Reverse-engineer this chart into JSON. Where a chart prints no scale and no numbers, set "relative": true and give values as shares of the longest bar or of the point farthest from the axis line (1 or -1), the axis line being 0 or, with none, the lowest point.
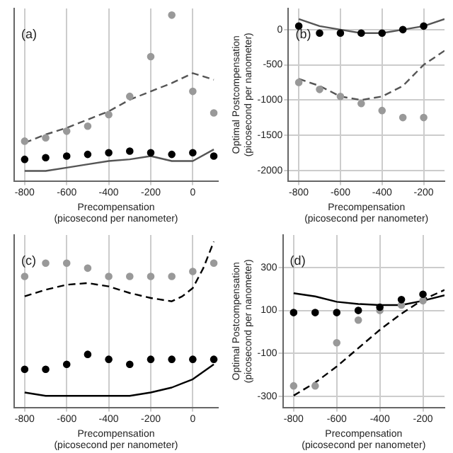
{
  "chart_data": [
    {
      "type": "line",
      "relative": true,
      "x": [
        -800,
        -700,
        -600,
        -500,
        -400,
        -300,
        -200,
        -100,
        0,
        100
      ],
      "xlabel": "Precompensation\n(picosecond per nanometer)",
      "xlim": [
        -850,
        120
      ],
      "xticks": [
        -800,
        -600,
        -400,
        -200,
        0
      ],
      "tick_labels": "x",
      "grid": "x",
      "annotations": [
        "(a)"
      ],
      "series": [
        {
          "type": "scatter",
          "marker": "circle",
          "color": "#999999",
          "values": [
            0.24,
            0.26,
            0.3,
            0.33,
            0.4,
            0.51,
            0.75,
            1.0,
            0.54,
            0.41
          ]
        },
        {
          "type": "scatter",
          "marker": "circle",
          "color": "#000000",
          "values": [
            0.13,
            0.14,
            0.15,
            0.16,
            0.17,
            0.18,
            0.17,
            0.16,
            0.17,
            0.15
          ]
        },
        {
          "line_style": "dashed",
          "color": "#555555",
          "values": [
            0.23,
            0.28,
            0.32,
            0.37,
            0.42,
            0.49,
            0.54,
            0.59,
            0.65,
            0.61
          ]
        },
        {
          "line_style": "solid",
          "color": "#555555",
          "values": [
            0.06,
            0.06,
            0.08,
            0.1,
            0.12,
            0.13,
            0.15,
            0.12,
            0.12,
            0.19
          ]
        }
      ]
    },
    {
      "type": "line",
      "x": [
        -800,
        -700,
        -600,
        -500,
        -400,
        -300,
        -200,
        -100
      ],
      "xlabel": "Precompensation\n(picosecond per nanometer)",
      "ylabel": "Optimal Postcompensation\n(picosecond per nanometer)",
      "xlim": [
        -850,
        -100
      ],
      "xticks": [
        -800,
        -600,
        -400,
        -200
      ],
      "ylim": [
        -2150,
        300
      ],
      "yticks": [
        -2000,
        -1500,
        -1000,
        -500,
        0
      ],
      "grid": true,
      "annotations": [
        "(b)"
      ],
      "series": [
        {
          "type": "scatter",
          "marker": "circle",
          "color": "#000000",
          "values": [
            50,
            -50,
            -50,
            -50,
            -50,
            0,
            50,
            null
          ]
        },
        {
          "type": "scatter",
          "marker": "circle",
          "color": "#999999",
          "values": [
            -750,
            -850,
            -950,
            -1050,
            -1150,
            -1250,
            -1250,
            null
          ]
        },
        {
          "line_style": "dashed",
          "color": "#555555",
          "values": [
            -700,
            -800,
            -950,
            -1000,
            -950,
            -800,
            -500,
            -300
          ]
        },
        {
          "line_style": "solid",
          "color": "#555555",
          "values": [
            150,
            50,
            0,
            -50,
            -50,
            0,
            50,
            150
          ]
        }
      ]
    },
    {
      "type": "line",
      "relative": true,
      "x": [
        -800,
        -700,
        -600,
        -500,
        -400,
        -300,
        -200,
        -100,
        -50,
        0,
        50,
        100
      ],
      "xlabel": "Precompensation\n(picosecond per nanometer)",
      "xlim": [
        -850,
        120
      ],
      "xticks": [
        -800,
        -600,
        -400,
        -200,
        0
      ],
      "tick_labels": "x",
      "grid": "x",
      "annotations": [
        "(c)"
      ],
      "series": [
        {
          "type": "scatter",
          "marker": "circle",
          "color": "#999999",
          "values": [
            0.79,
            0.87,
            0.87,
            0.84,
            0.79,
            0.79,
            0.79,
            0.79,
            null,
            0.82,
            null,
            0.87
          ]
        },
        {
          "type": "scatter",
          "marker": "circle",
          "color": "#000000",
          "values": [
            0.23,
            0.23,
            0.26,
            0.32,
            0.29,
            0.26,
            0.29,
            0.29,
            null,
            0.29,
            null,
            0.29
          ]
        },
        {
          "line_style": "dashed",
          "color": "#000000",
          "values": [
            0.67,
            0.71,
            0.74,
            0.75,
            0.73,
            0.69,
            0.66,
            0.64,
            0.67,
            0.72,
            0.84,
            1.0
          ]
        },
        {
          "line_style": "solid",
          "color": "#000000",
          "values": [
            0.09,
            0.07,
            0.07,
            0.07,
            0.07,
            0.07,
            0.09,
            0.12,
            null,
            0.17,
            null,
            0.26
          ]
        }
      ]
    },
    {
      "type": "line",
      "x": [
        -800,
        -700,
        -600,
        -500,
        -400,
        -300,
        -200,
        -100
      ],
      "xlabel": "Precompensation\n(picosecond per nanometer)",
      "ylabel": "Optimal Postcompensation\n(picosecond per nanometer)",
      "xlim": [
        -850,
        -100
      ],
      "xticks": [
        -800,
        -600,
        -400,
        -200
      ],
      "ylim": [
        -350,
        450
      ],
      "yticks": [
        -300,
        -100,
        100,
        300
      ],
      "grid": true,
      "annotations": [
        "(d)"
      ],
      "series": [
        {
          "type": "scatter",
          "marker": "circle",
          "color": "#000000",
          "values": [
            90,
            90,
            90,
            100,
            115,
            150,
            175,
            null
          ]
        },
        {
          "type": "scatter",
          "marker": "circle",
          "color": "#999999",
          "values": [
            -250,
            -250,
            -50,
            55,
            100,
            125,
            145,
            null
          ]
        },
        {
          "line_style": "solid",
          "color": "#000000",
          "values": [
            180,
            165,
            140,
            130,
            125,
            125,
            145,
            170
          ]
        },
        {
          "line_style": "dashed",
          "color": "#000000",
          "values": [
            -295,
            -235,
            -160,
            -75,
            10,
            85,
            150,
            195
          ]
        }
      ]
    }
  ]
}
